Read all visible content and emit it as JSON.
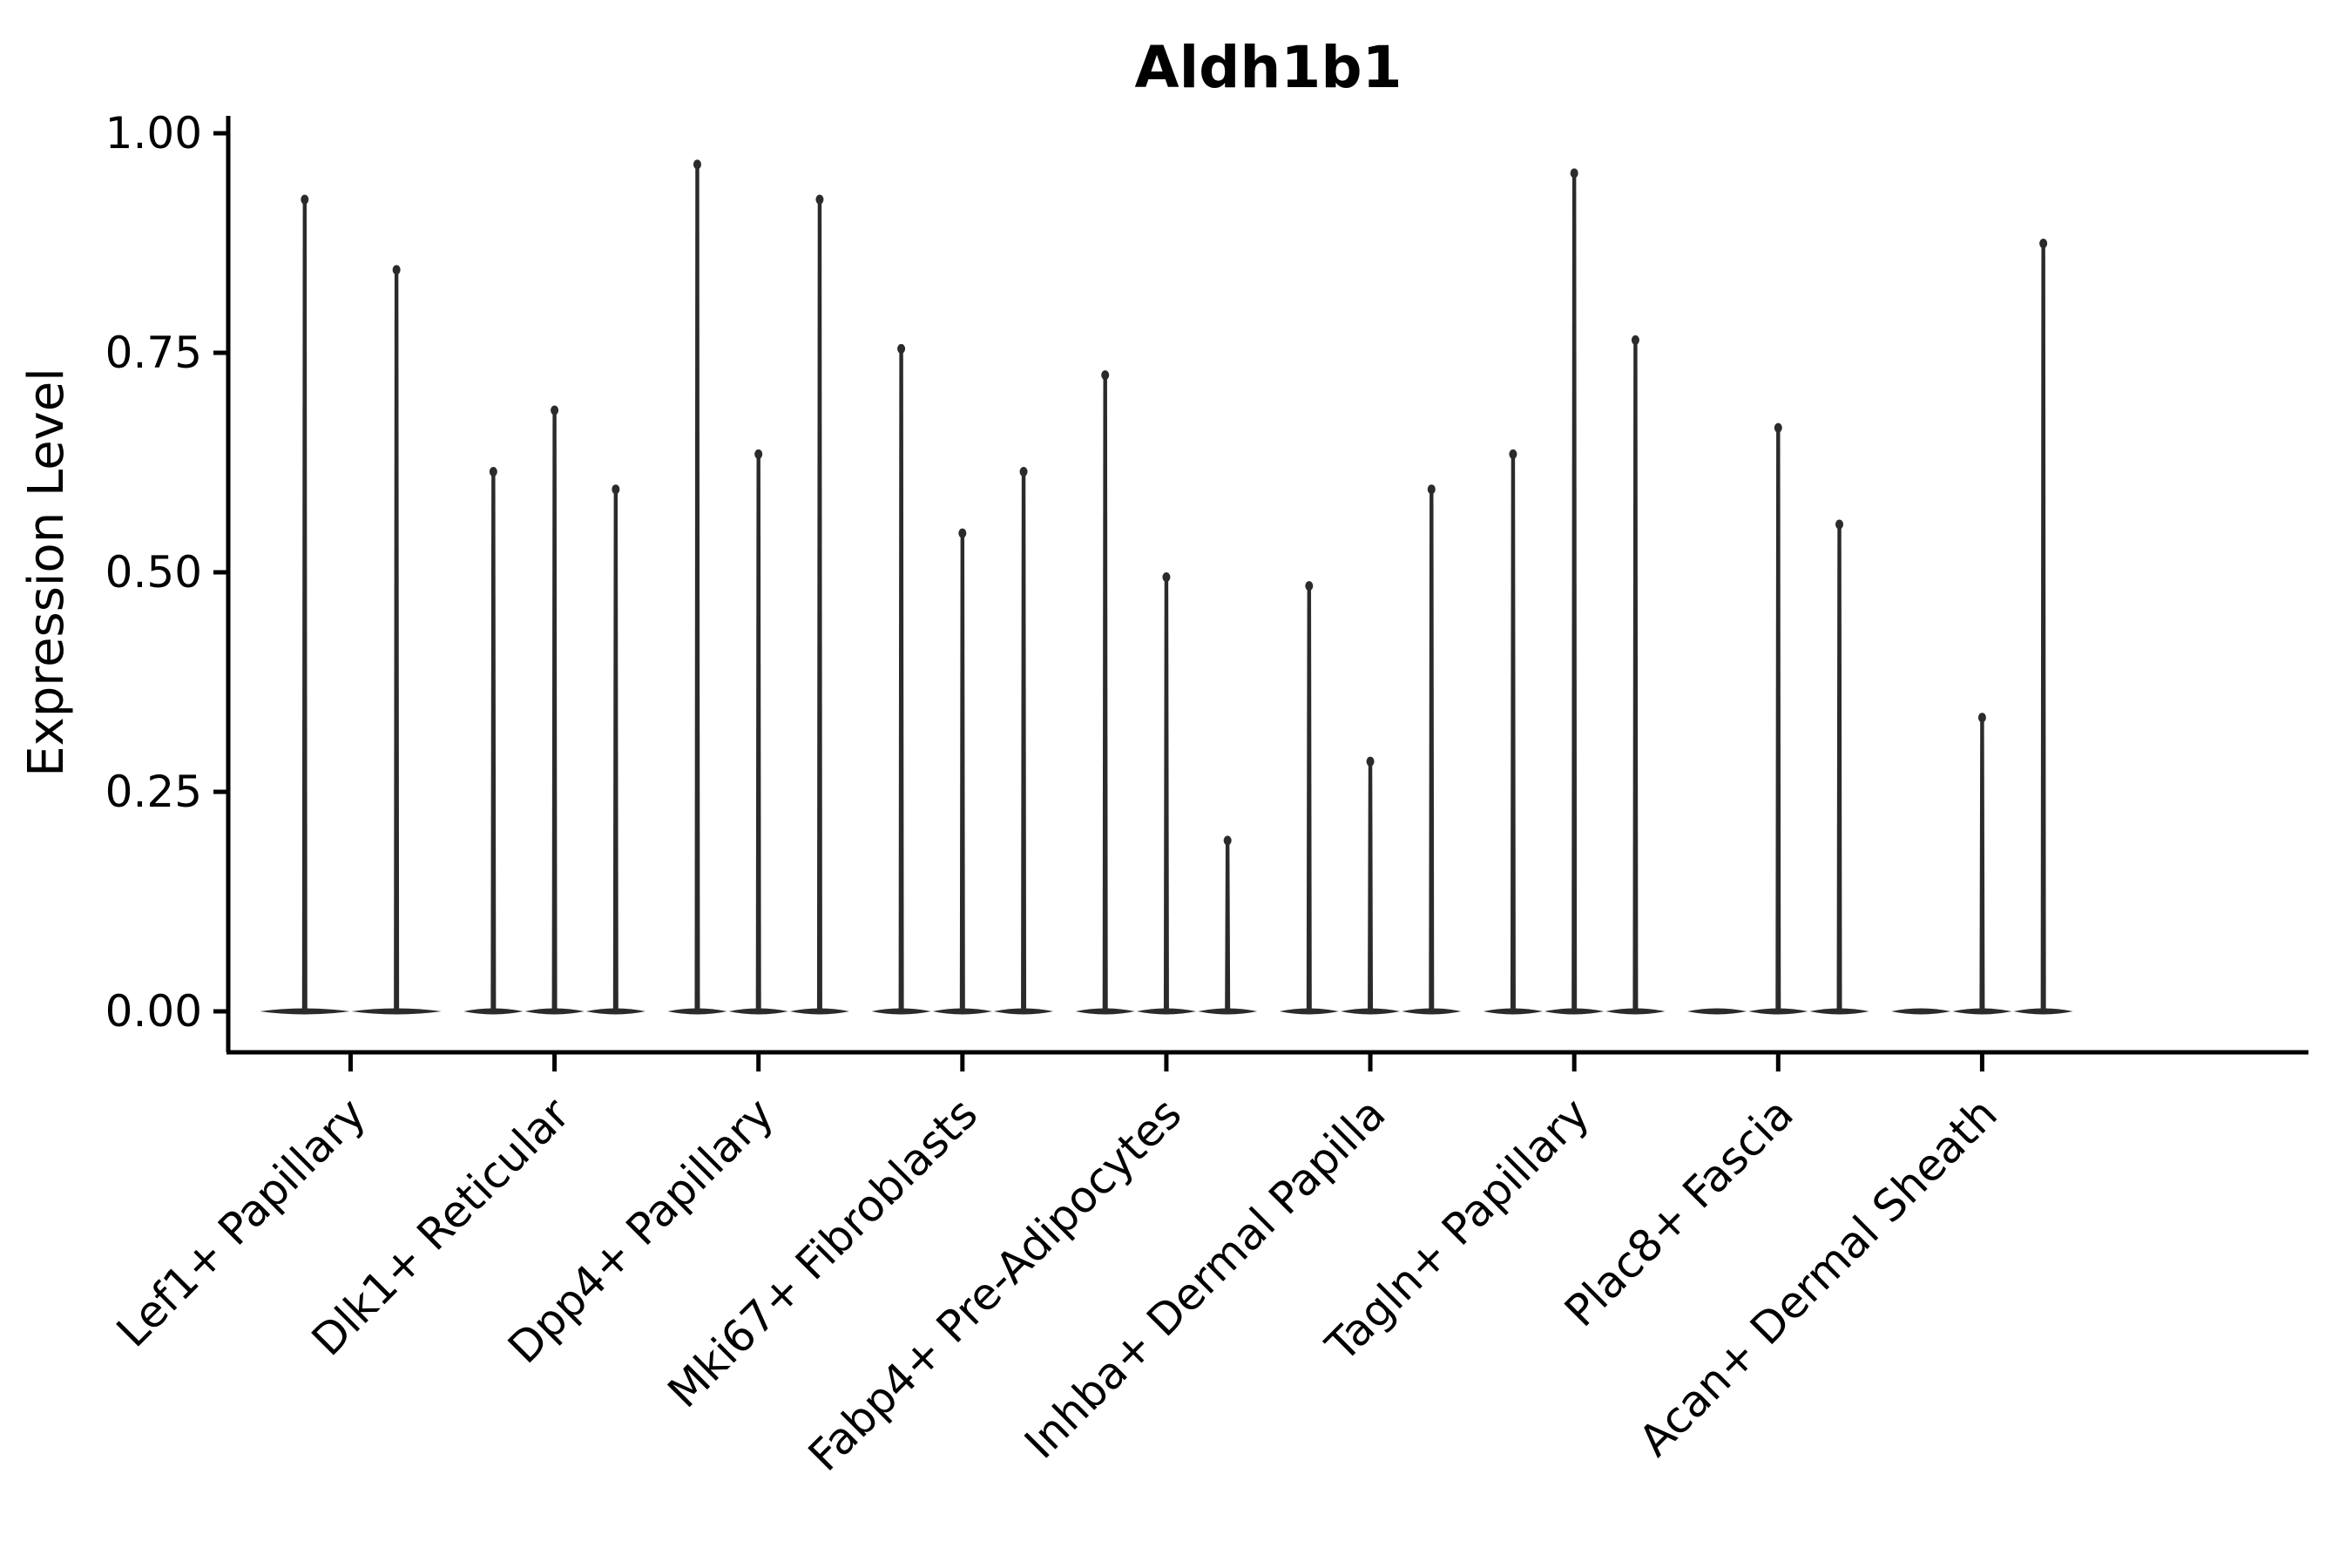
{
  "chart_data": {
    "type": "violin",
    "title": "Aldh1b1",
    "xlabel": "",
    "ylabel": "Expression Level",
    "ylim": [
      0,
      1.0
    ],
    "y_ticks": [
      0.0,
      0.25,
      0.5,
      0.75,
      1.0
    ],
    "y_tick_labels": [
      "0.00",
      "0.25",
      "0.50",
      "0.75",
      "1.00"
    ],
    "grid": false,
    "legend": "none",
    "spines": [
      "left",
      "bottom"
    ],
    "x_label_angle_deg": 45,
    "violin_color": "#2b2b2b",
    "axis_color": "#000000",
    "description": "Seurat-style stacked violin plot of Aldh1b1 expression; each cell-type group contains 2-3 very thin spike-shaped violins rising from a flat base at 0. A value of 0 means a flat violin with no spike.",
    "categories": [
      "Lef1+ Papillary",
      "Dlk1+ Reticular",
      "Dpp4+ Papillary",
      "Mki67+ Fibroblasts",
      "Fabp4+ Pre-Adipocytes",
      "Inhba+ Dermal Papilla",
      "Tagln+ Papillary",
      "Plac8+ Fascia",
      "Acan+ Dermal Sheath"
    ],
    "groups": [
      {
        "category": "Lef1+ Papillary",
        "spike_maxima": [
          0.93,
          0.85
        ]
      },
      {
        "category": "Dlk1+ Reticular",
        "spike_maxima": [
          0.62,
          0.69,
          0.6
        ]
      },
      {
        "category": "Dpp4+ Papillary",
        "spike_maxima": [
          0.97,
          0.64,
          0.93
        ]
      },
      {
        "category": "Mki67+ Fibroblasts",
        "spike_maxima": [
          0.76,
          0.55,
          0.62
        ]
      },
      {
        "category": "Fabp4+ Pre-Adipocytes",
        "spike_maxima": [
          0.73,
          0.5,
          0.2
        ]
      },
      {
        "category": "Inhba+ Dermal Papilla",
        "spike_maxima": [
          0.49,
          0.29,
          0.6
        ]
      },
      {
        "category": "Tagln+ Papillary",
        "spike_maxima": [
          0.64,
          0.96,
          0.77
        ]
      },
      {
        "category": "Plac8+ Fascia",
        "spike_maxima": [
          0,
          0.67,
          0.56
        ]
      },
      {
        "category": "Acan+ Dermal Sheath",
        "spike_maxima": [
          0,
          0.34,
          0.88
        ]
      }
    ]
  }
}
